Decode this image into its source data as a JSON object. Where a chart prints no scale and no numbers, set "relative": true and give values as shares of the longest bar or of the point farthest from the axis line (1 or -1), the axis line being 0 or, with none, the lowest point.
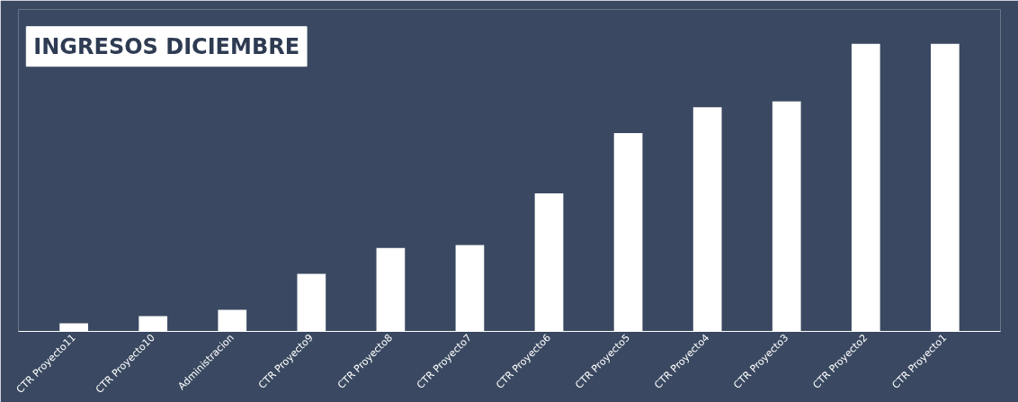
{
  "chart_data": {
    "type": "bar",
    "title": "INGRESOS DICIEMBRE",
    "relative": true,
    "categories": [
      "CTR Proyecto11",
      "CTR Proyecto10",
      "Administracion",
      "CTR Proyecto9",
      "CTR Proyecto8",
      "CTR Proyecto7",
      "CTR Proyecto6",
      "CTR Proyecto5",
      "CTR Proyecto4",
      "CTR Proyecto3",
      "CTR Proyecto2",
      "CTR Proyecto1"
    ],
    "values": [
      0.028,
      0.053,
      0.075,
      0.2,
      0.29,
      0.3,
      0.48,
      0.69,
      0.78,
      0.8,
      1,
      1
    ],
    "color": "#ffffff"
  }
}
